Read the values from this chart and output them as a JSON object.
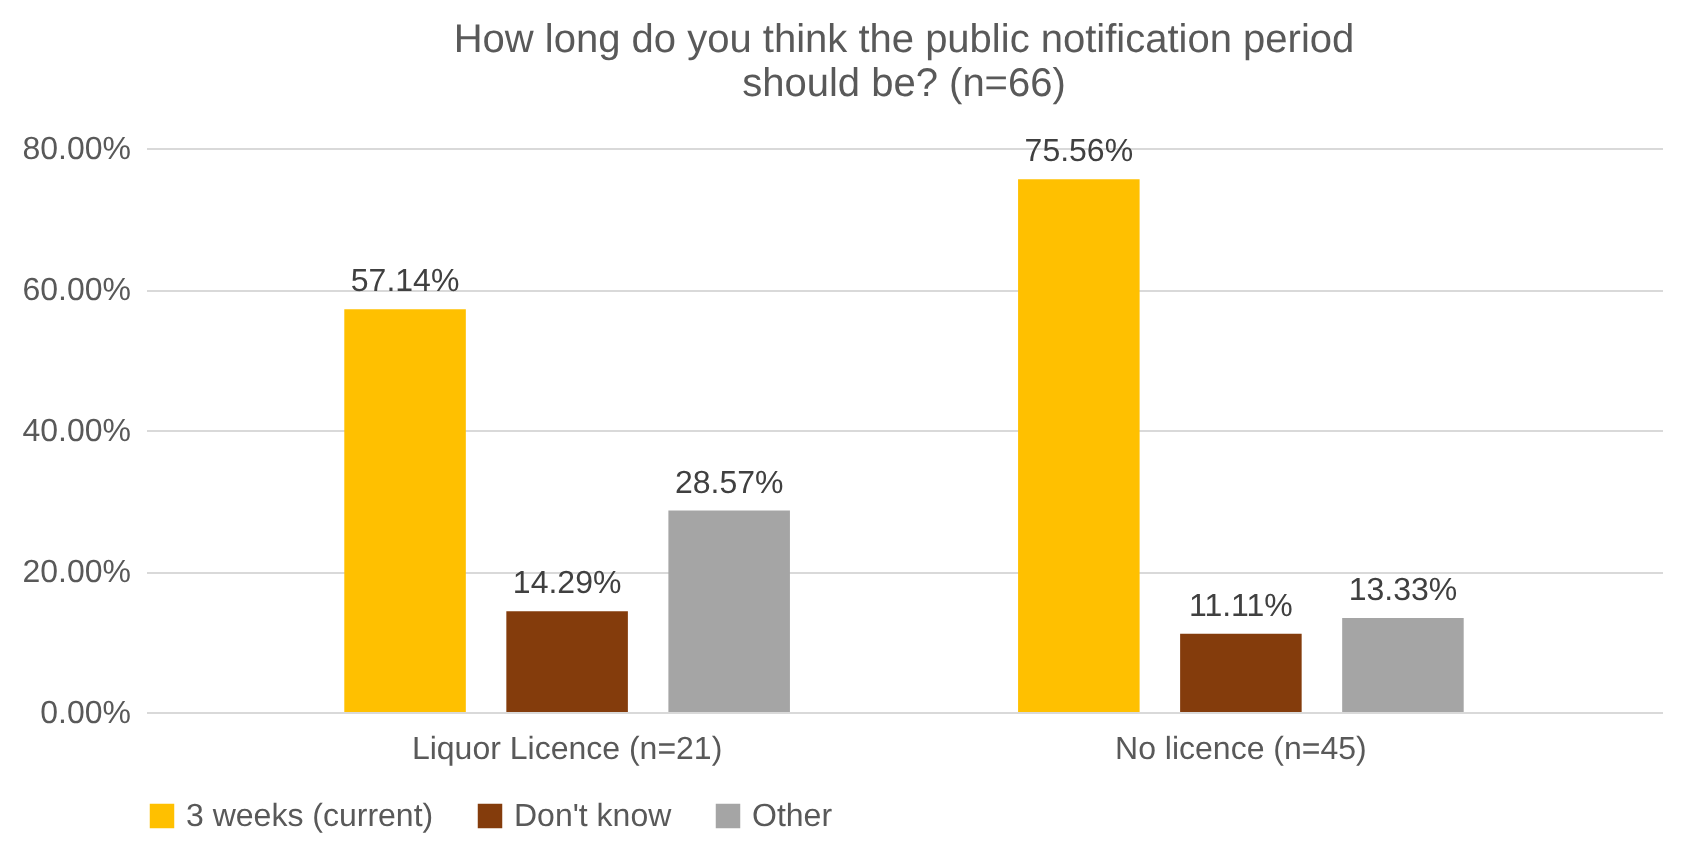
{
  "chart_data": {
    "type": "bar",
    "title": "How long do you think the public notification period should be? (n=66)",
    "categories": [
      "Liquor Licence (n=21)",
      "No licence (n=45)"
    ],
    "series": [
      {
        "name": "3 weeks (current)",
        "color": "#ffc000",
        "values": [
          57.14,
          75.56
        ],
        "value_labels": [
          "57.14%",
          "75.56%"
        ]
      },
      {
        "name": "Don't know",
        "color": "#843c0c",
        "values": [
          14.29,
          11.11
        ],
        "value_labels": [
          "14.29%",
          "11.11%"
        ]
      },
      {
        "name": "Other",
        "color": "#a5a5a5",
        "values": [
          28.57,
          13.33
        ],
        "value_labels": [
          "28.57%",
          "13.33%"
        ]
      }
    ],
    "ylim": [
      0,
      80
    ],
    "yticks": [
      {
        "value": 0,
        "label": "0.00%"
      },
      {
        "value": 20,
        "label": "20.00%"
      },
      {
        "value": 40,
        "label": "40.00%"
      },
      {
        "value": 60,
        "label": "60.00%"
      },
      {
        "value": 80,
        "label": "80.00%"
      }
    ],
    "grid": "y",
    "legend": "bottom"
  }
}
